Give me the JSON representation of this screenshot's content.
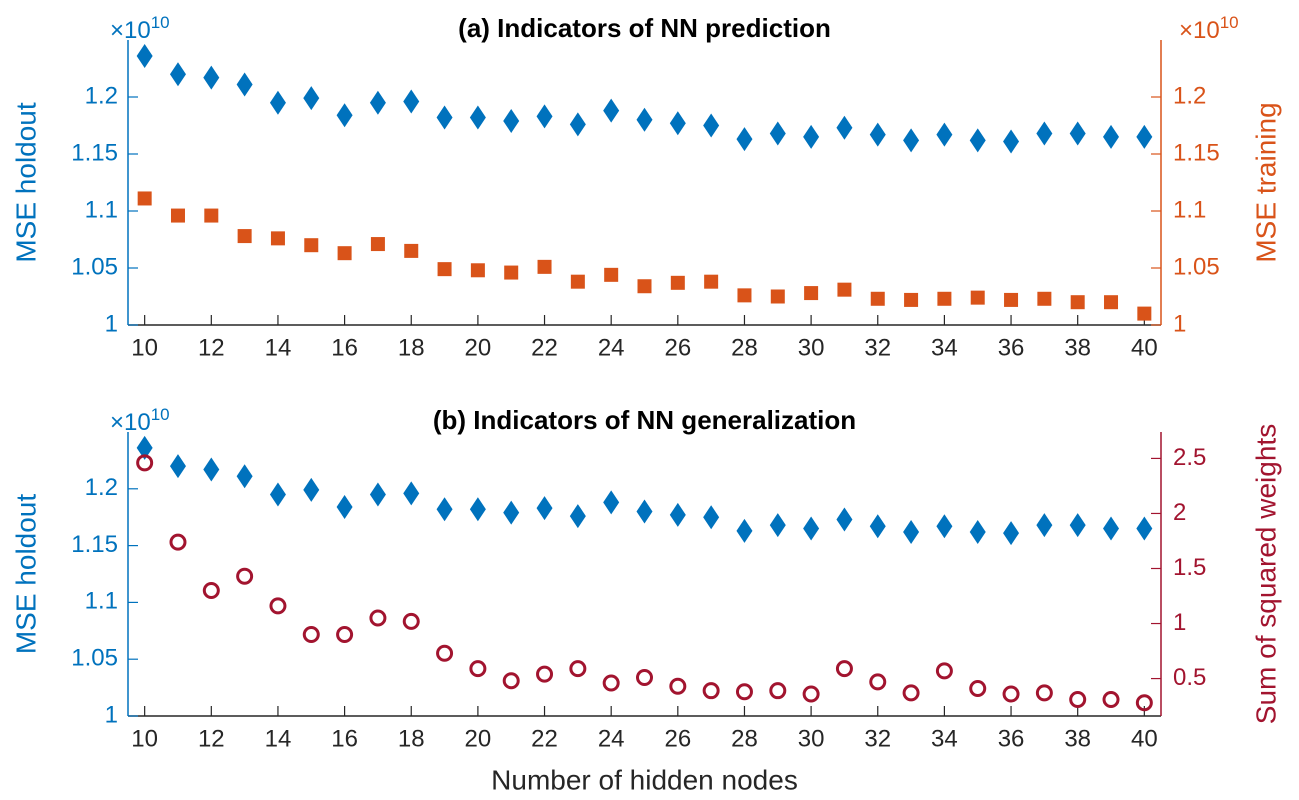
{
  "chart_data": [
    {
      "type": "scatter",
      "title": "(a) Indicators of NN prediction",
      "ylabel": "MSE holdout",
      "y2label": "MSE training",
      "y_exponent_base": "×10",
      "y_exponent_power": "10",
      "y2_exponent_base": "×10",
      "y2_exponent_power": "10",
      "x": [
        10,
        11,
        12,
        13,
        14,
        15,
        16,
        17,
        18,
        19,
        20,
        21,
        22,
        23,
        24,
        25,
        26,
        27,
        28,
        29,
        30,
        31,
        32,
        33,
        34,
        35,
        36,
        37,
        38,
        39,
        40
      ],
      "xlim": [
        9.5,
        40.5
      ],
      "xticks": [
        10,
        12,
        14,
        16,
        18,
        20,
        22,
        24,
        26,
        28,
        30,
        32,
        34,
        36,
        38,
        40
      ],
      "ylim": [
        1,
        1.25
      ],
      "yticks": [
        1,
        1.05,
        1.1,
        1.15,
        1.2
      ],
      "y2lim": [
        1,
        1.25
      ],
      "y2ticks": [
        1,
        1.05,
        1.1,
        1.15,
        1.2
      ],
      "y_color": "#0072BD",
      "y2_color": "#D95319",
      "series": [
        {
          "color": "#0072BD",
          "marker": "diamond",
          "axis": "y",
          "values": [
            1.236,
            1.22,
            1.217,
            1.211,
            1.195,
            1.199,
            1.184,
            1.195,
            1.196,
            1.182,
            1.182,
            1.179,
            1.183,
            1.176,
            1.188,
            1.18,
            1.177,
            1.175,
            1.163,
            1.168,
            1.165,
            1.173,
            1.167,
            1.162,
            1.167,
            1.162,
            1.161,
            1.168,
            1.168,
            1.165,
            1.165
          ]
        },
        {
          "color": "#D95319",
          "marker": "square",
          "axis": "y2",
          "values": [
            1.111,
            1.096,
            1.096,
            1.078,
            1.076,
            1.07,
            1.063,
            1.071,
            1.065,
            1.049,
            1.048,
            1.046,
            1.051,
            1.038,
            1.044,
            1.034,
            1.037,
            1.038,
            1.026,
            1.025,
            1.028,
            1.031,
            1.023,
            1.022,
            1.023,
            1.024,
            1.022,
            1.023,
            1.02,
            1.02,
            1.01
          ]
        }
      ]
    },
    {
      "type": "scatter",
      "title": "(b) Indicators of NN generalization",
      "xlabel": "Number of hidden nodes",
      "ylabel": "MSE holdout",
      "y2label": "Sum of squared weights",
      "y_exponent_base": "×10",
      "y_exponent_power": "10",
      "x": [
        10,
        11,
        12,
        13,
        14,
        15,
        16,
        17,
        18,
        19,
        20,
        21,
        22,
        23,
        24,
        25,
        26,
        27,
        28,
        29,
        30,
        31,
        32,
        33,
        34,
        35,
        36,
        37,
        38,
        39,
        40
      ],
      "xlim": [
        9.5,
        40.5
      ],
      "xticks": [
        10,
        12,
        14,
        16,
        18,
        20,
        22,
        24,
        26,
        28,
        30,
        32,
        34,
        36,
        38,
        40
      ],
      "ylim": [
        1,
        1.25
      ],
      "yticks": [
        1,
        1.05,
        1.1,
        1.15,
        1.2
      ],
      "y2lim": [
        0.16,
        2.74
      ],
      "y2ticks": [
        0.5,
        1,
        1.5,
        2,
        2.5
      ],
      "y_color": "#0072BD",
      "y2_color": "#A2142F",
      "series": [
        {
          "color": "#0072BD",
          "marker": "diamond",
          "axis": "y",
          "values": [
            1.236,
            1.22,
            1.217,
            1.211,
            1.195,
            1.199,
            1.184,
            1.195,
            1.196,
            1.182,
            1.182,
            1.179,
            1.183,
            1.176,
            1.188,
            1.18,
            1.177,
            1.175,
            1.163,
            1.168,
            1.165,
            1.173,
            1.167,
            1.162,
            1.167,
            1.162,
            1.161,
            1.168,
            1.168,
            1.165,
            1.165
          ]
        },
        {
          "color": "#A2142F",
          "marker": "circle",
          "axis": "y2",
          "values": [
            2.46,
            1.74,
            1.3,
            1.43,
            1.16,
            0.9,
            0.9,
            1.05,
            1.02,
            0.73,
            0.59,
            0.48,
            0.54,
            0.59,
            0.46,
            0.51,
            0.43,
            0.39,
            0.38,
            0.39,
            0.36,
            0.59,
            0.47,
            0.37,
            0.57,
            0.41,
            0.36,
            0.37,
            0.31,
            0.31,
            0.28
          ]
        }
      ]
    }
  ]
}
